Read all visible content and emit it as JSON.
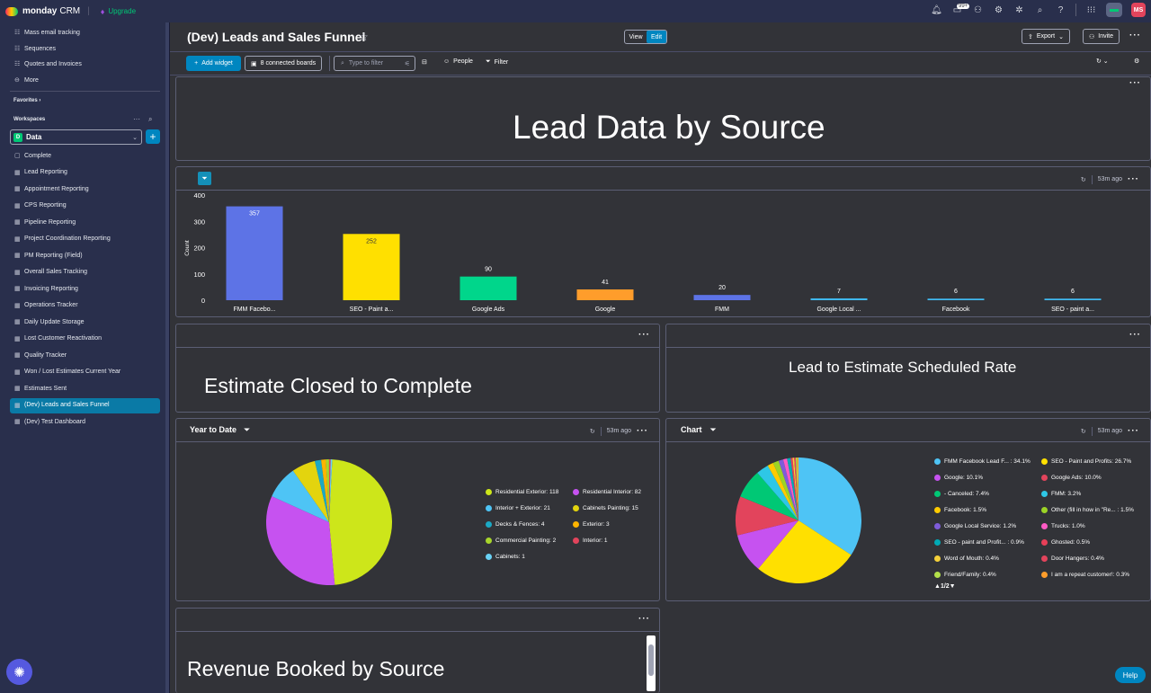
{
  "app": {
    "logo_text": "monday",
    "logo_sub": "CRM",
    "upgrade": "Upgrade",
    "notifications_badge": "99+",
    "avatar_initials": "MS"
  },
  "sidebar": {
    "top_items": [
      {
        "label": "Mass email tracking",
        "icon": "list-icon"
      },
      {
        "label": "Sequences",
        "icon": "list-icon"
      },
      {
        "label": "Quotes and Invoices",
        "icon": "list-icon"
      },
      {
        "label": "More",
        "icon": "more-icon"
      }
    ],
    "favorites_label": "Favorites",
    "workspaces_label": "Workspaces",
    "workspace_initial": "D",
    "workspace_name": "Data",
    "boards": [
      "Complete",
      "Lead Reporting",
      "Appointment Reporting",
      "CPS Reporting",
      "Pipeline Reporting",
      "Project Coordination Reporting",
      "PM Reporting (Field)",
      "Overall Sales Tracking",
      "Invoicing Reporting",
      "Operations Tracker",
      "Daily Update Storage",
      "Lost Customer Reactivation",
      "Quality Tracker",
      "Won / Lost Estimates Current Year",
      "Estimates Sent",
      "(Dev) Leads and Sales Funnel",
      "(Dev) Test Dashboard"
    ],
    "active_board": "(Dev) Leads and Sales Funnel"
  },
  "header": {
    "title": "(Dev) Leads and Sales Funnel",
    "view_label": "View",
    "edit_label": "Edit",
    "export_label": "Export",
    "invite_label": "Invite"
  },
  "toolbar": {
    "add_widget": "Add widget",
    "connected_boards": "8 connected boards",
    "filter_placeholder": "Type to filter",
    "people": "People",
    "filter": "Filter"
  },
  "widgets": {
    "lead_data_title": "Lead Data by Source",
    "bar_updated": "53m ago",
    "estimate_closed": "Estimate Closed to Complete",
    "lead_to_estimate": "Lead to Estimate Scheduled Rate",
    "ytd_title": "Year to Date",
    "ytd_updated": "53m ago",
    "chart_title": "Chart",
    "chart_updated": "53m ago",
    "revenue_title": "Revenue Booked by Source",
    "pagination": "1/2"
  },
  "help_label": "Help",
  "chart_data": [
    {
      "type": "bar",
      "ylabel": "Count",
      "ylim": [
        0,
        400
      ],
      "yticks": [
        0,
        100,
        200,
        300,
        400
      ],
      "categories": [
        "FMM Facebo...",
        "SEO - Paint a...",
        "Google Ads",
        "Google",
        "FMM",
        "Google Local ...",
        "Facebook",
        "SEO - paint a..."
      ],
      "values": [
        357,
        252,
        90,
        41,
        20,
        7,
        6,
        6
      ],
      "colors": [
        "#5d73e6",
        "#ffe000",
        "#00d68b",
        "#ff9d2b",
        "#5d73e6",
        "#40b8ee",
        "#40b8ee",
        "#40b8ee"
      ]
    },
    {
      "type": "pie",
      "title": "Year to Date",
      "slices": [
        {
          "label": "Residential Exterior: 118",
          "value": 118,
          "color": "#cde61a"
        },
        {
          "label": "Residential Interior: 82",
          "value": 82,
          "color": "#c652f0"
        },
        {
          "label": "Interior + Exterior: 21",
          "value": 21,
          "color": "#4ec4f5"
        },
        {
          "label": "Cabinets Painting: 15",
          "value": 15,
          "color": "#e3d40e"
        },
        {
          "label": "Decks & Fences: 4",
          "value": 4,
          "color": "#1ba9c5"
        },
        {
          "label": "Exterior: 3",
          "value": 3,
          "color": "#ffb400"
        },
        {
          "label": "Commercial Painting: 2",
          "value": 2,
          "color": "#a8d62b"
        },
        {
          "label": "Interior: 1",
          "value": 1,
          "color": "#e2445c"
        },
        {
          "label": "Cabinets: 1",
          "value": 1,
          "color": "#69d2f5"
        }
      ]
    },
    {
      "type": "pie",
      "title": "Chart",
      "slices": [
        {
          "label": "FMM Facebook Lead F... : 34.1%",
          "value": 34.1,
          "color": "#4ec4f5"
        },
        {
          "label": "SEO - Paint and Profits: 26.7%",
          "value": 26.7,
          "color": "#ffe000"
        },
        {
          "label": "Google: 10.1%",
          "value": 10.1,
          "color": "#c652f0"
        },
        {
          "label": "Google Ads: 10.0%",
          "value": 10.0,
          "color": "#e2445c"
        },
        {
          "label": "- Canceled: 7.4%",
          "value": 7.4,
          "color": "#00c875"
        },
        {
          "label": "FMM: 3.2%",
          "value": 3.2,
          "color": "#2ec7e6"
        },
        {
          "label": "Facebook: 1.5%",
          "value": 1.5,
          "color": "#ffcb00"
        },
        {
          "label": "Other (fill in how in \"Re... : 1.5%",
          "value": 1.5,
          "color": "#9cd326"
        },
        {
          "label": "Google Local Service: 1.2%",
          "value": 1.2,
          "color": "#7e5cd9"
        },
        {
          "label": "Trucks: 1.0%",
          "value": 1.0,
          "color": "#ff5ac4"
        },
        {
          "label": "SEO - paint and Profit... : 0.9%",
          "value": 0.9,
          "color": "#00a9b5"
        },
        {
          "label": "Ghosted: 0.5%",
          "value": 0.5,
          "color": "#e83f58"
        },
        {
          "label": "Word of Mouth: 0.4%",
          "value": 0.4,
          "color": "#f4d03a"
        },
        {
          "label": "Door Hangers: 0.4%",
          "value": 0.4,
          "color": "#e2445c"
        },
        {
          "label": "Friend/Family: 0.4%",
          "value": 0.4,
          "color": "#b3e04a"
        },
        {
          "label": "I am a repeat customer!: 0.3%",
          "value": 0.3,
          "color": "#ff9d2b"
        }
      ]
    }
  ]
}
